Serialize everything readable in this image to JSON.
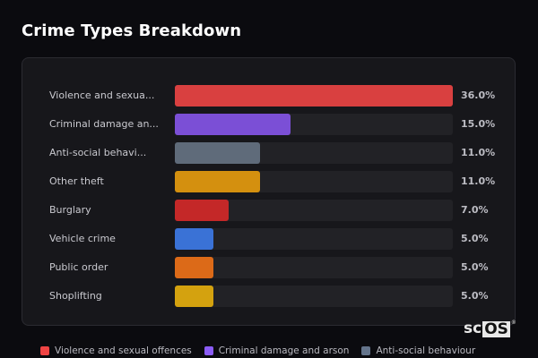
{
  "header": {
    "title": "Crime Types Breakdown"
  },
  "chart_data": {
    "type": "bar",
    "orientation": "horizontal",
    "title": "Crime Types Breakdown",
    "xlabel": "",
    "ylabel": "",
    "xlim": [
      0,
      36
    ],
    "grid": false,
    "legend_position": "bottom",
    "categories": [
      "Violence and sexual offences",
      "Criminal damage and arson",
      "Anti-social behaviour",
      "Other theft",
      "Burglary",
      "Vehicle crime",
      "Public order",
      "Shoplifting"
    ],
    "display_labels": [
      "Violence and sexua...",
      "Criminal damage an...",
      "Anti-social behavi...",
      "Other theft",
      "Burglary",
      "Vehicle crime",
      "Public order",
      "Shoplifting"
    ],
    "values": [
      36.0,
      15.0,
      11.0,
      11.0,
      7.0,
      5.0,
      5.0,
      5.0
    ],
    "value_labels": [
      "36.0%",
      "15.0%",
      "11.0%",
      "11.0%",
      "7.0%",
      "5.0%",
      "5.0%",
      "5.0%"
    ],
    "colors": [
      "#d94040",
      "#7b4fd6",
      "#5f6b7a",
      "#d4900f",
      "#c42828",
      "#3a72d6",
      "#dc6a18",
      "#d4a20f"
    ]
  },
  "legend": [
    {
      "label": "Violence and sexual offences",
      "color": "#ef4444"
    },
    {
      "label": "Criminal damage and arson",
      "color": "#8b5cf6"
    },
    {
      "label": "Anti-social behaviour",
      "color": "#64748b"
    }
  ],
  "watermark": {
    "prefix": "sc",
    "boxed": "OS",
    "mark": "®"
  }
}
